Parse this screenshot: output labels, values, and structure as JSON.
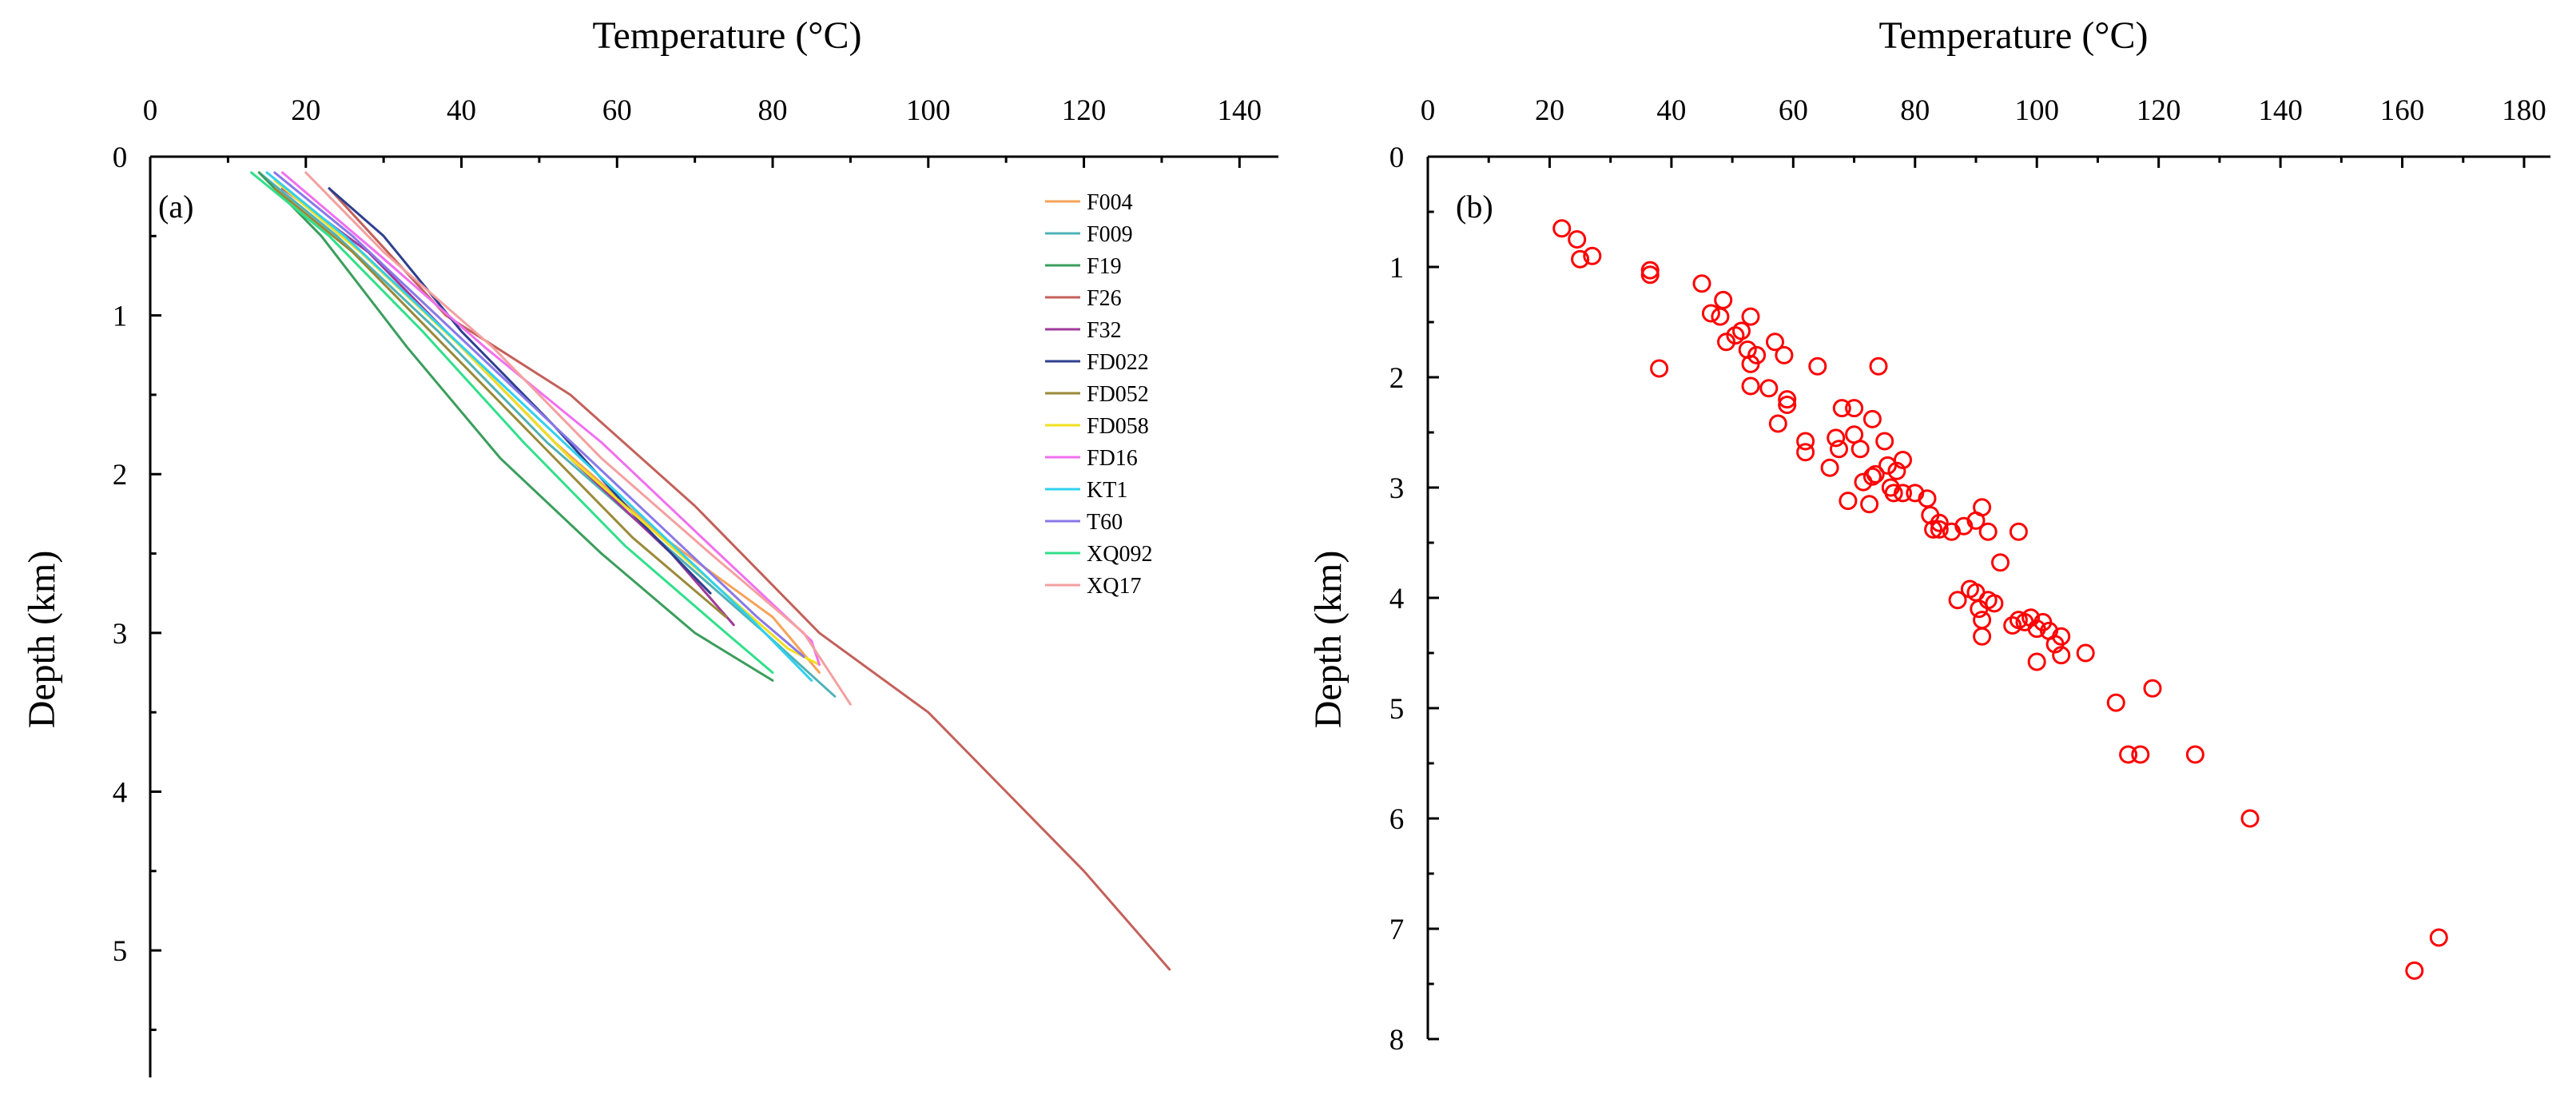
{
  "chart_data": [
    {
      "type": "line",
      "panel": "(a)",
      "xlabel": "Temperature (°C)",
      "ylabel": "Depth (km)",
      "xlim": [
        0,
        145
      ],
      "ylim": [
        0,
        5.8
      ],
      "xticks": [
        "0",
        "20",
        "40",
        "60",
        "80",
        "100",
        "120",
        "140"
      ],
      "yticks": [
        "0",
        "1",
        "2",
        "3",
        "4",
        "5"
      ],
      "legend_position": "top-right",
      "series": [
        {
          "name": "F004",
          "color": "#f5a35a",
          "points": [
            [
              15,
              0.1
            ],
            [
              25,
              0.5
            ],
            [
              38,
              1.1
            ],
            [
              52,
              1.8
            ],
            [
              66,
              2.4
            ],
            [
              80,
              2.9
            ],
            [
              86,
              3.25
            ]
          ]
        },
        {
          "name": "F009",
          "color": "#4fb3b8",
          "points": [
            [
              14,
              0.1
            ],
            [
              24,
              0.5
            ],
            [
              37,
              1.1
            ],
            [
              51,
              1.8
            ],
            [
              65,
              2.4
            ],
            [
              79,
              3.0
            ],
            [
              88,
              3.4
            ]
          ]
        },
        {
          "name": "F19",
          "color": "#3a9e5c",
          "points": [
            [
              14,
              0.1
            ],
            [
              22,
              0.5
            ],
            [
              33,
              1.2
            ],
            [
              45,
              1.9
            ],
            [
              58,
              2.5
            ],
            [
              70,
              3.0
            ],
            [
              80,
              3.3
            ]
          ]
        },
        {
          "name": "F26",
          "color": "#c4605a",
          "points": [
            [
              23,
              0.2
            ],
            [
              38,
              1.0
            ],
            [
              54,
              1.5
            ],
            [
              70,
              2.2
            ],
            [
              86,
              3.0
            ],
            [
              100,
              3.5
            ],
            [
              110,
              4.0
            ],
            [
              120,
              4.5
            ],
            [
              128,
              4.95
            ],
            [
              131,
              5.12
            ]
          ]
        },
        {
          "name": "F32",
          "color": "#a03a9a",
          "points": [
            [
              17,
              0.2
            ],
            [
              28,
              0.6
            ],
            [
              40,
              1.2
            ],
            [
              54,
              1.9
            ],
            [
              67,
              2.5
            ],
            [
              75,
              2.95
            ]
          ]
        },
        {
          "name": "FD022",
          "color": "#2e3f8f",
          "points": [
            [
              23,
              0.2
            ],
            [
              30,
              0.5
            ],
            [
              40,
              1.1
            ],
            [
              52,
              1.7
            ],
            [
              63,
              2.3
            ],
            [
              72,
              2.75
            ]
          ]
        },
        {
          "name": "FD052",
          "color": "#9a8a3a",
          "points": [
            [
              16,
              0.2
            ],
            [
              26,
              0.6
            ],
            [
              38,
              1.2
            ],
            [
              50,
              1.8
            ],
            [
              62,
              2.4
            ],
            [
              74,
              2.9
            ]
          ]
        },
        {
          "name": "FD058",
          "color": "#f0e020",
          "points": [
            [
              16,
              0.15
            ],
            [
              27,
              0.6
            ],
            [
              40,
              1.2
            ],
            [
              54,
              1.9
            ],
            [
              68,
              2.5
            ],
            [
              82,
              3.1
            ],
            [
              86,
              3.2
            ]
          ]
        },
        {
          "name": "FD16",
          "color": "#f070f0",
          "points": [
            [
              17,
              0.1
            ],
            [
              29,
              0.6
            ],
            [
              43,
              1.2
            ],
            [
              58,
              1.8
            ],
            [
              72,
              2.45
            ],
            [
              85,
              3.05
            ],
            [
              86,
              3.2
            ]
          ]
        },
        {
          "name": "KT1",
          "color": "#30d0f0",
          "points": [
            [
              15,
              0.1
            ],
            [
              25,
              0.5
            ],
            [
              38,
              1.1
            ],
            [
              51,
              1.7
            ],
            [
              64,
              2.3
            ],
            [
              77,
              2.9
            ],
            [
              85,
              3.3
            ]
          ]
        },
        {
          "name": "T60",
          "color": "#8a78e8",
          "points": [
            [
              16,
              0.1
            ],
            [
              26,
              0.5
            ],
            [
              39,
              1.1
            ],
            [
              52,
              1.7
            ],
            [
              65,
              2.3
            ],
            [
              78,
              2.9
            ],
            [
              84,
              3.15
            ]
          ]
        },
        {
          "name": "XQ092",
          "color": "#30e08a",
          "points": [
            [
              13,
              0.1
            ],
            [
              23,
              0.5
            ],
            [
              35,
              1.1
            ],
            [
              48,
              1.8
            ],
            [
              61,
              2.45
            ],
            [
              74,
              3.0
            ],
            [
              80,
              3.25
            ]
          ]
        },
        {
          "name": "XQ17",
          "color": "#f4a0a0",
          "points": [
            [
              20,
              0.1
            ],
            [
              30,
              0.6
            ],
            [
              44,
              1.2
            ],
            [
              58,
              1.9
            ],
            [
              72,
              2.5
            ],
            [
              84,
              3.0
            ],
            [
              90,
              3.45
            ]
          ]
        }
      ]
    },
    {
      "type": "scatter",
      "panel": "(b)",
      "xlabel": "Temperature (°C)",
      "ylabel": "Depth (km)",
      "xlim": [
        0,
        180
      ],
      "ylim": [
        0,
        8
      ],
      "xticks": [
        "0",
        "20",
        "40",
        "60",
        "80",
        "100",
        "120",
        "140",
        "160",
        "180"
      ],
      "yticks": [
        "0",
        "1",
        "2",
        "3",
        "4",
        "5",
        "6",
        "7",
        "8"
      ],
      "marker": "open-circle",
      "color": "#ff0000",
      "points": [
        [
          22,
          0.65
        ],
        [
          24.5,
          0.75
        ],
        [
          25,
          0.93
        ],
        [
          27,
          0.9
        ],
        [
          36.5,
          1.03
        ],
        [
          36.5,
          1.07
        ],
        [
          38,
          1.92
        ],
        [
          45,
          1.15
        ],
        [
          46.5,
          1.42
        ],
        [
          48.5,
          1.3
        ],
        [
          48,
          1.45
        ],
        [
          49,
          1.68
        ],
        [
          50.5,
          1.62
        ],
        [
          51.5,
          1.58
        ],
        [
          52.5,
          1.75
        ],
        [
          53,
          1.45
        ],
        [
          53,
          1.88
        ],
        [
          54,
          1.8
        ],
        [
          53,
          2.08
        ],
        [
          56,
          2.1
        ],
        [
          57,
          1.68
        ],
        [
          58.5,
          1.8
        ],
        [
          59,
          2.2
        ],
        [
          59,
          2.25
        ],
        [
          57.5,
          2.42
        ],
        [
          62,
          2.58
        ],
        [
          62,
          2.68
        ],
        [
          64,
          1.9
        ],
        [
          66,
          2.82
        ],
        [
          67,
          2.55
        ],
        [
          67.5,
          2.65
        ],
        [
          68,
          2.28
        ],
        [
          69,
          3.12
        ],
        [
          70,
          2.28
        ],
        [
          70,
          2.52
        ],
        [
          71,
          2.65
        ],
        [
          71.5,
          2.95
        ],
        [
          72.5,
          3.15
        ],
        [
          73,
          2.38
        ],
        [
          73,
          2.9
        ],
        [
          73.5,
          2.88
        ],
        [
          74,
          1.9
        ],
        [
          75,
          2.58
        ],
        [
          75.5,
          2.8
        ],
        [
          76,
          3.0
        ],
        [
          76.5,
          3.05
        ],
        [
          77,
          2.85
        ],
        [
          78,
          3.05
        ],
        [
          78,
          2.75
        ],
        [
          80,
          3.05
        ],
        [
          82,
          3.1
        ],
        [
          82.5,
          3.25
        ],
        [
          83,
          3.38
        ],
        [
          84,
          3.32
        ],
        [
          84,
          3.38
        ],
        [
          86,
          3.4
        ],
        [
          88,
          3.35
        ],
        [
          90,
          3.3
        ],
        [
          91,
          3.18
        ],
        [
          92,
          3.4
        ],
        [
          87,
          4.02
        ],
        [
          89,
          3.92
        ],
        [
          90,
          3.95
        ],
        [
          90.5,
          4.1
        ],
        [
          91,
          4.2
        ],
        [
          91,
          4.35
        ],
        [
          92,
          4.02
        ],
        [
          93,
          4.05
        ],
        [
          94,
          3.68
        ],
        [
          96,
          4.25
        ],
        [
          97,
          4.2
        ],
        [
          97,
          3.4
        ],
        [
          98,
          4.22
        ],
        [
          99,
          4.18
        ],
        [
          100,
          4.28
        ],
        [
          100,
          4.58
        ],
        [
          101,
          4.22
        ],
        [
          102,
          4.3
        ],
        [
          103,
          4.42
        ],
        [
          104,
          4.35
        ],
        [
          104,
          4.52
        ],
        [
          108,
          4.5
        ],
        [
          113,
          4.95
        ],
        [
          115,
          5.42
        ],
        [
          117,
          5.42
        ],
        [
          119,
          4.82
        ],
        [
          126,
          5.42
        ],
        [
          135,
          6.0
        ],
        [
          162,
          7.38
        ],
        [
          166,
          7.08
        ]
      ]
    }
  ]
}
